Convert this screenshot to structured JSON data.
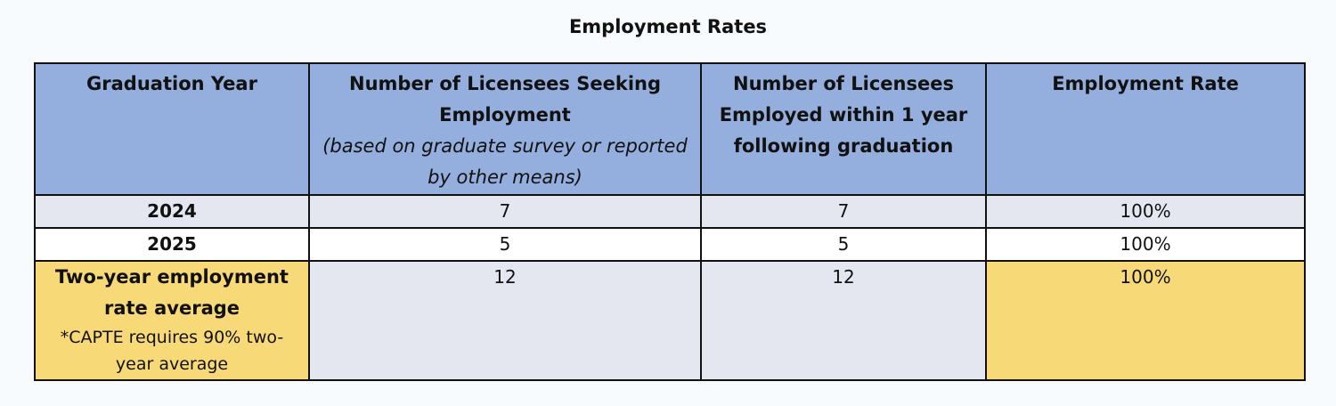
{
  "title": "Employment Rates",
  "table": {
    "header": [
      {
        "text": "Graduation Year"
      },
      {
        "text": "Number of Licensees Seeking Employment",
        "note": "(based on graduate survey or reported by other means)"
      },
      {
        "text": "Number of Licensees Employed within 1 year following graduation"
      },
      {
        "text": "Employment Rate"
      }
    ],
    "rows": [
      [
        "2024",
        7,
        7,
        "100%"
      ],
      [
        "2025",
        5,
        5,
        "100%"
      ],
      [
        {
          "text": "Two-year employment rate average",
          "note": "*CAPTE requires 90% two-year average"
        },
        12,
        12,
        "100%"
      ]
    ]
  }
}
